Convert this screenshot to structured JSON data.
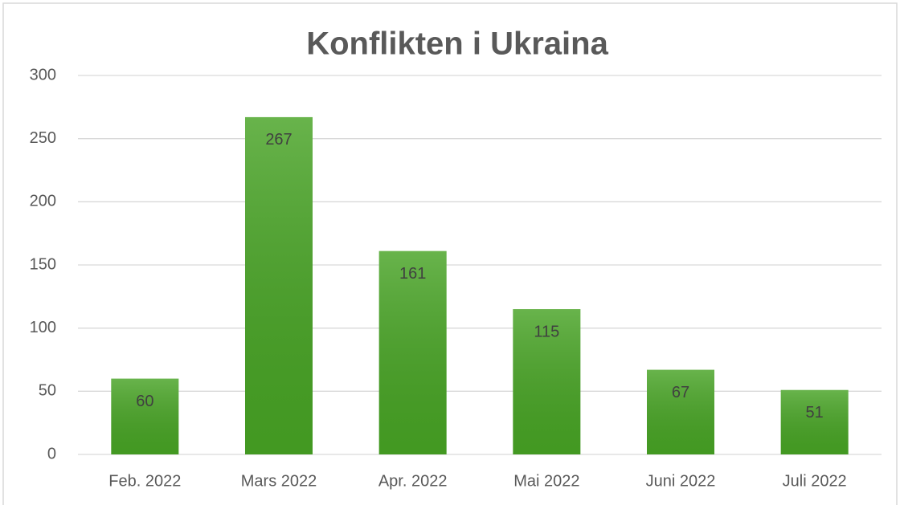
{
  "chart_data": {
    "type": "bar",
    "title": "Konflikten i Ukraina",
    "categories": [
      "Feb. 2022",
      "Mars 2022",
      "Apr. 2022",
      "Mai 2022",
      "Juni 2022",
      "Juli 2022"
    ],
    "values": [
      60,
      267,
      161,
      115,
      67,
      51
    ],
    "color": "#47a324",
    "ylim": [
      0,
      300
    ],
    "yticks": [
      0,
      50,
      100,
      150,
      200,
      250,
      300
    ],
    "grid": true
  }
}
